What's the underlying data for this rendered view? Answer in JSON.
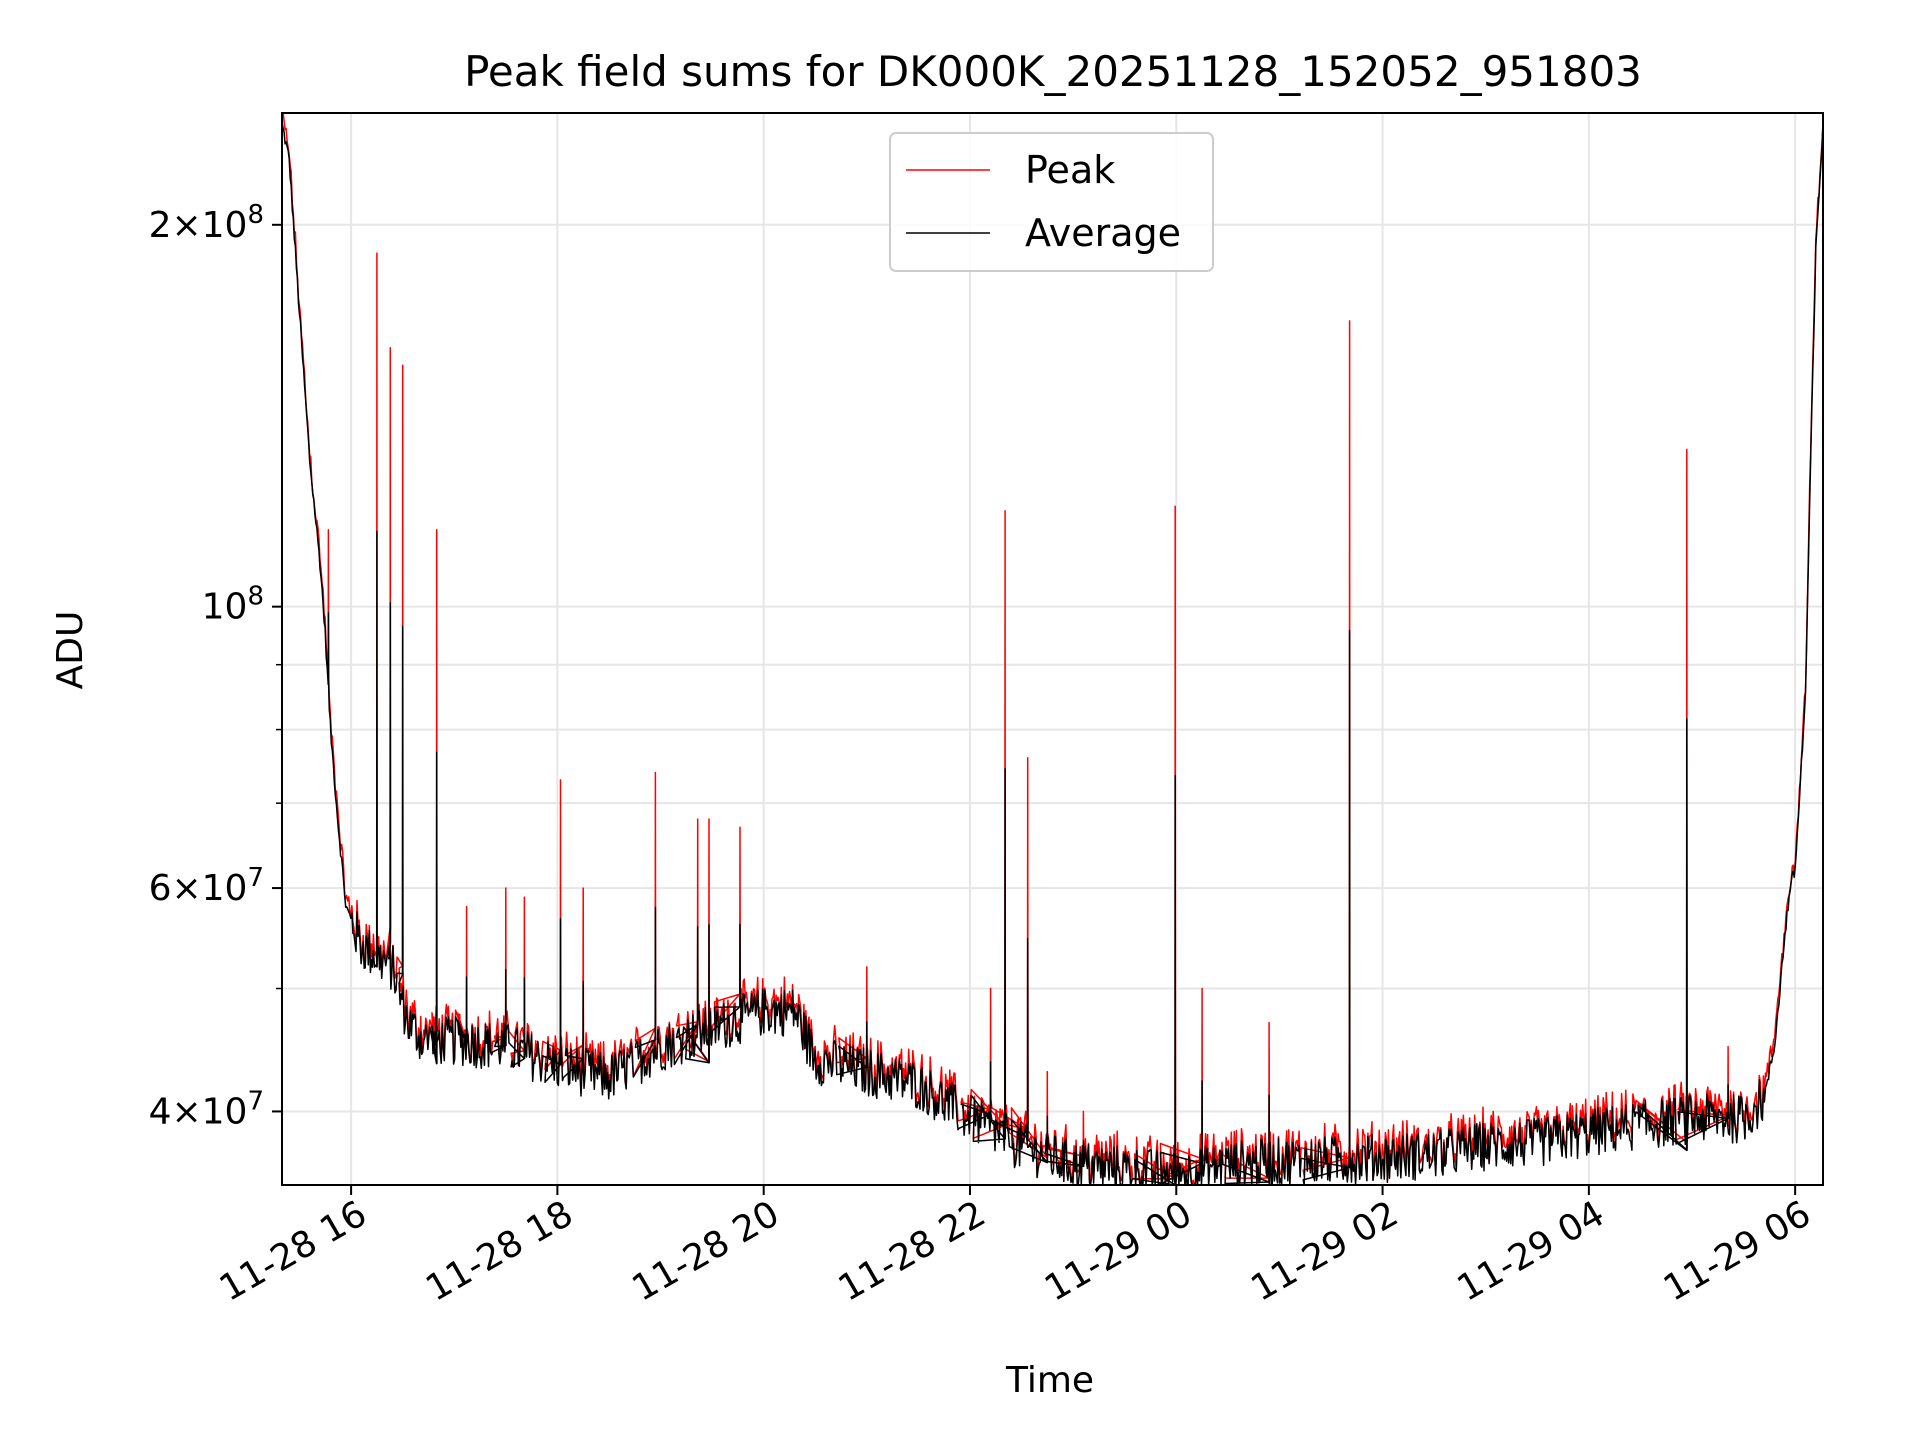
{
  "chart_data": {
    "type": "line",
    "title": "Peak field sums for DK000K_20251128_152052_951803",
    "xlabel": "Time",
    "ylabel": "ADU",
    "yscale": "log",
    "x_unit": "hours since 2025-11-28 00:00",
    "xlim": [
      15.33,
      30.27
    ],
    "ylim": [
      35000000,
      245000000
    ],
    "grid": true,
    "legend": {
      "placement": "top-center",
      "entries": [
        "Peak",
        "Average"
      ]
    },
    "x_ticks": [
      {
        "value": 16,
        "label": "11-28 16"
      },
      {
        "value": 18,
        "label": "11-28 18"
      },
      {
        "value": 20,
        "label": "11-28 20"
      },
      {
        "value": 22,
        "label": "11-28 22"
      },
      {
        "value": 24,
        "label": "11-29 00"
      },
      {
        "value": 26,
        "label": "11-29 02"
      },
      {
        "value": 28,
        "label": "11-29 04"
      },
      {
        "value": 30,
        "label": "11-29 06"
      }
    ],
    "y_major_ticks": [
      {
        "value": 40000000,
        "mantissa": "4",
        "exponent": "7"
      },
      {
        "value": 60000000,
        "mantissa": "6",
        "exponent": "7"
      },
      {
        "value": 100000000,
        "mantissa": "",
        "exponent": "8"
      },
      {
        "value": 200000000,
        "mantissa": "2",
        "exponent": "8"
      }
    ],
    "y_minor_ticks": [
      50000000,
      70000000,
      80000000,
      90000000
    ],
    "series": [
      {
        "name": "Average",
        "color": "#000000",
        "anchors": [
          [
            15.33,
            240000000
          ],
          [
            15.4,
            225000000
          ],
          [
            15.5,
            170000000
          ],
          [
            15.6,
            130000000
          ],
          [
            15.7,
            108000000
          ],
          [
            15.75,
            95000000
          ],
          [
            15.8,
            80000000
          ],
          [
            15.87,
            68000000
          ],
          [
            15.95,
            58000000
          ],
          [
            16.1,
            54000000
          ],
          [
            16.25,
            53000000
          ],
          [
            16.4,
            52000000
          ],
          [
            16.55,
            47000000
          ],
          [
            16.7,
            45500000
          ],
          [
            17.0,
            45500000
          ],
          [
            17.5,
            45000000
          ],
          [
            18.0,
            43500000
          ],
          [
            18.5,
            42500000
          ],
          [
            19.0,
            45000000
          ],
          [
            19.5,
            46500000
          ],
          [
            20.0,
            48000000
          ],
          [
            20.3,
            48000000
          ],
          [
            20.5,
            44000000
          ],
          [
            21.0,
            43000000
          ],
          [
            21.5,
            42000000
          ],
          [
            22.0,
            39500000
          ],
          [
            22.5,
            37500000
          ],
          [
            23.0,
            36300000
          ],
          [
            23.5,
            36000000
          ],
          [
            24.0,
            35600000
          ],
          [
            24.5,
            36300000
          ],
          [
            25.0,
            36500000
          ],
          [
            25.5,
            36600000
          ],
          [
            26.0,
            36800000
          ],
          [
            26.5,
            37000000
          ],
          [
            27.0,
            37600000
          ],
          [
            27.5,
            37800000
          ],
          [
            28.0,
            38500000
          ],
          [
            28.5,
            39000000
          ],
          [
            29.0,
            39500000
          ],
          [
            29.5,
            39500000
          ],
          [
            29.7,
            41000000
          ],
          [
            29.8,
            45000000
          ],
          [
            29.9,
            55000000
          ],
          [
            29.95,
            60000000
          ],
          [
            30.0,
            62000000
          ],
          [
            30.1,
            85000000
          ],
          [
            30.15,
            130000000
          ],
          [
            30.2,
            190000000
          ],
          [
            30.27,
            240000000
          ]
        ]
      },
      {
        "name": "Peak",
        "color": "#ff0000",
        "spikes": [
          [
            16.25,
            190000000
          ],
          [
            16.38,
            160000000
          ],
          [
            16.5,
            155000000
          ],
          [
            16.83,
            115000000
          ],
          [
            15.78,
            115000000
          ],
          [
            17.12,
            58000000
          ],
          [
            17.5,
            60000000
          ],
          [
            17.68,
            59000000
          ],
          [
            18.03,
            73000000
          ],
          [
            18.25,
            60000000
          ],
          [
            18.95,
            74000000
          ],
          [
            19.36,
            68000000
          ],
          [
            19.47,
            68000000
          ],
          [
            19.77,
            67000000
          ],
          [
            21.0,
            52000000
          ],
          [
            22.2,
            50000000
          ],
          [
            22.34,
            119000000
          ],
          [
            22.56,
            76000000
          ],
          [
            22.75,
            43000000
          ],
          [
            23.1,
            40000000
          ],
          [
            23.99,
            120000000
          ],
          [
            24.25,
            50000000
          ],
          [
            24.9,
            47000000
          ],
          [
            25.68,
            168000000
          ],
          [
            28.95,
            133000000
          ],
          [
            29.35,
            45000000
          ]
        ]
      }
    ]
  }
}
